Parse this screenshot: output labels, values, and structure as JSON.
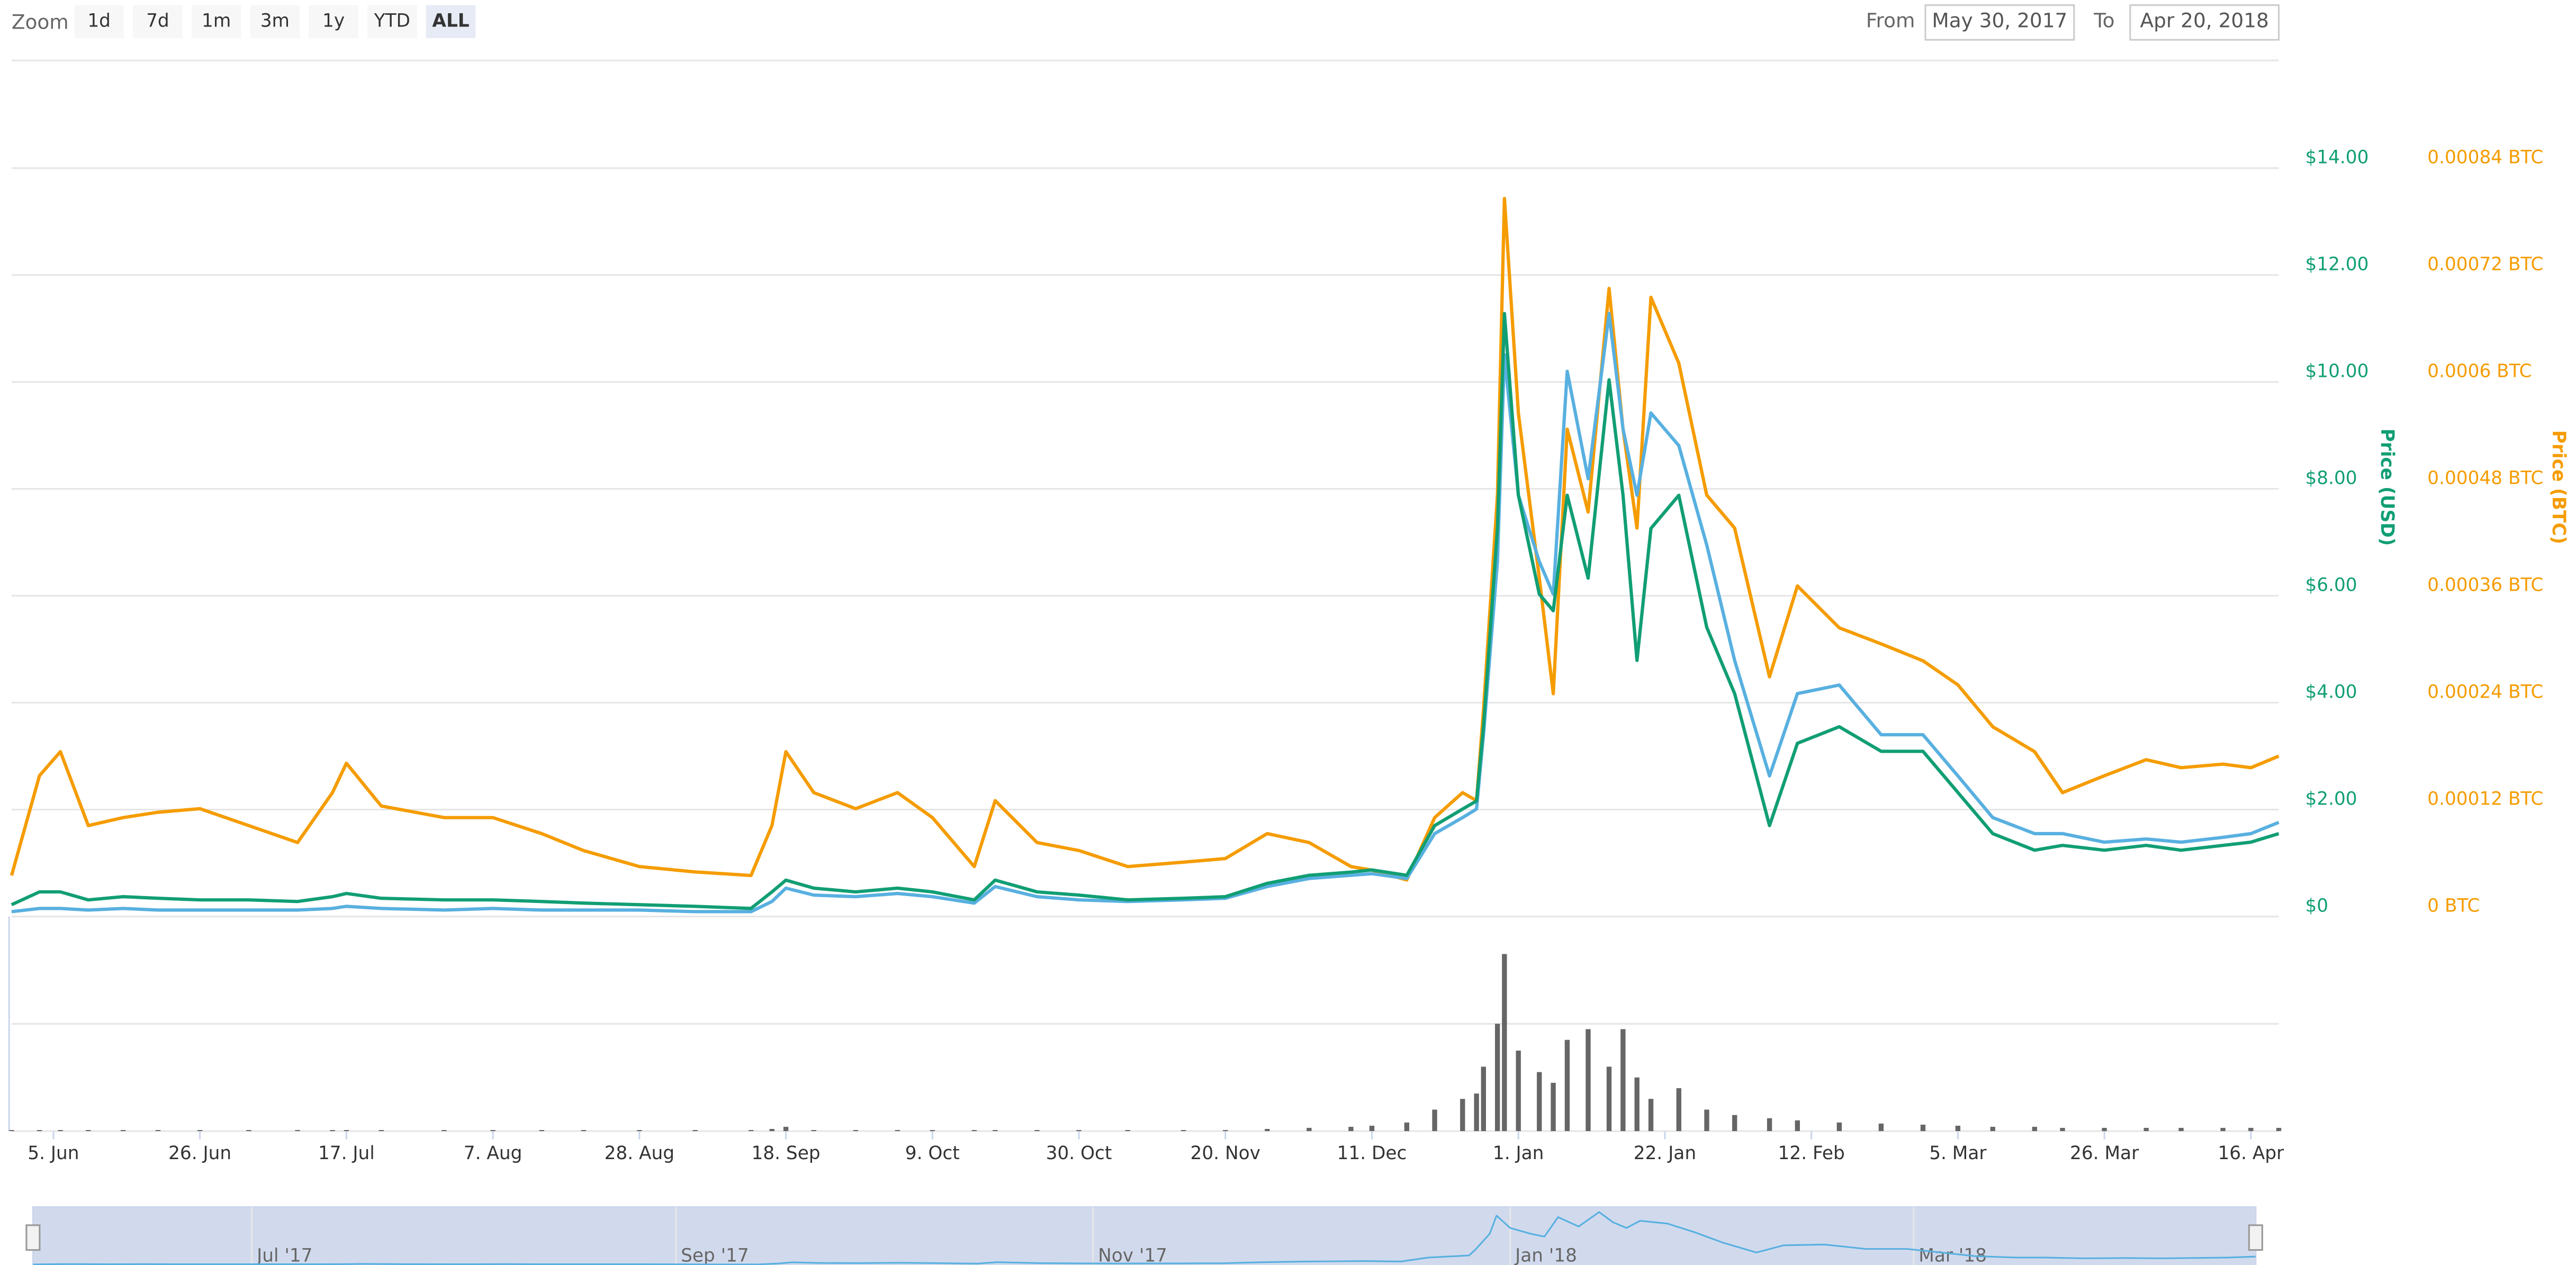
{
  "range_selector": {
    "label": "Zoom",
    "buttons": [
      "1d",
      "7d",
      "1m",
      "3m",
      "1y",
      "YTD",
      "ALL"
    ],
    "selected": 6
  },
  "date_range": {
    "from_label": "From",
    "from": "May 30, 2017",
    "to_label": "To",
    "to": "Apr 20, 2018"
  },
  "chart_data": {
    "type": "line",
    "y_label": "Price (USD)",
    "y2_label": "Price (BTC)",
    "x": [
      "2017-05-30",
      "2017-06-03",
      "2017-06-06",
      "2017-06-10",
      "2017-06-15",
      "2017-06-20",
      "2017-06-26",
      "2017-07-03",
      "2017-07-10",
      "2017-07-15",
      "2017-07-17",
      "2017-07-22",
      "2017-07-31",
      "2017-08-07",
      "2017-08-14",
      "2017-08-20",
      "2017-08-28",
      "2017-09-05",
      "2017-09-13",
      "2017-09-16",
      "2017-09-18",
      "2017-09-22",
      "2017-09-28",
      "2017-10-04",
      "2017-10-09",
      "2017-10-15",
      "2017-10-18",
      "2017-10-24",
      "2017-10-30",
      "2017-11-06",
      "2017-11-14",
      "2017-11-20",
      "2017-11-26",
      "2017-12-02",
      "2017-12-08",
      "2017-12-11",
      "2017-12-16",
      "2017-12-20",
      "2017-12-24",
      "2017-12-26",
      "2017-12-27",
      "2017-12-29",
      "2017-12-30",
      "2018-01-01",
      "2018-01-04",
      "2018-01-06",
      "2018-01-08",
      "2018-01-11",
      "2018-01-14",
      "2018-01-16",
      "2018-01-18",
      "2018-01-20",
      "2018-01-24",
      "2018-01-28",
      "2018-02-01",
      "2018-02-06",
      "2018-02-10",
      "2018-02-16",
      "2018-02-22",
      "2018-02-28",
      "2018-03-05",
      "2018-03-10",
      "2018-03-16",
      "2018-03-20",
      "2018-03-26",
      "2018-04-01",
      "2018-04-06",
      "2018-04-12",
      "2018-04-16",
      "2018-04-20"
    ],
    "series": [
      {
        "color": "#f59c00",
        "axis": "y2",
        "values": [
          4.6e-05,
          0.000158,
          0.000185,
          0.000102,
          0.000111,
          0.000117,
          0.000121,
          0.000102,
          8.3e-05,
          0.000139,
          0.000172,
          0.000124,
          0.000111,
          0.000111,
          9.3e-05,
          7.4e-05,
          5.6e-05,
          5e-05,
          4.6e-05,
          0.000102,
          0.000185,
          0.000139,
          0.000121,
          0.000139,
          0.000111,
          5.6e-05,
          0.00013,
          8.3e-05,
          7.4e-05,
          5.6e-05,
          6.1e-05,
          6.5e-05,
          9.3e-05,
          8.3e-05,
          5.6e-05,
          5.2e-05,
          4.1e-05,
          0.000111,
          0.000139,
          0.00013,
          0.000232,
          0.000473,
          0.000806,
          0.000565,
          0.00038,
          0.00025,
          0.000547,
          0.000454,
          0.000705,
          0.000547,
          0.000436,
          0.000695,
          0.000621,
          0.000473,
          0.000436,
          0.000269,
          0.000371,
          0.000324,
          0.000306,
          0.000287,
          0.00026,
          0.000213,
          0.000185,
          0.000139,
          0.000158,
          0.000176,
          0.000167,
          0.000171,
          0.000167,
          0.00018
        ]
      },
      {
        "color": "#58b0e0",
        "axis": "y",
        "values": [
          0.09,
          0.15,
          0.15,
          0.12,
          0.15,
          0.12,
          0.12,
          0.12,
          0.12,
          0.15,
          0.19,
          0.15,
          0.12,
          0.15,
          0.12,
          0.12,
          0.12,
          0.09,
          0.09,
          0.28,
          0.53,
          0.4,
          0.37,
          0.43,
          0.37,
          0.25,
          0.56,
          0.37,
          0.31,
          0.28,
          0.31,
          0.34,
          0.56,
          0.71,
          0.77,
          0.8,
          0.71,
          1.55,
          1.85,
          2.01,
          3.4,
          6.64,
          10.51,
          7.88,
          6.64,
          6.03,
          10.2,
          8.19,
          11.28,
          9.12,
          7.88,
          9.42,
          8.81,
          6.95,
          4.79,
          2.63,
          4.17,
          4.33,
          3.4,
          3.4,
          2.63,
          1.85,
          1.55,
          1.55,
          1.39,
          1.45,
          1.39,
          1.48,
          1.55,
          1.76
        ]
      },
      {
        "color": "#119e74",
        "axis": "y",
        "values": [
          0.22,
          0.46,
          0.46,
          0.31,
          0.37,
          0.34,
          0.31,
          0.31,
          0.28,
          0.37,
          0.43,
          0.34,
          0.31,
          0.31,
          0.28,
          0.25,
          0.22,
          0.19,
          0.15,
          0.46,
          0.68,
          0.53,
          0.46,
          0.53,
          0.46,
          0.31,
          0.68,
          0.46,
          0.4,
          0.31,
          0.34,
          0.37,
          0.62,
          0.77,
          0.83,
          0.87,
          0.77,
          1.7,
          2.01,
          2.16,
          3.55,
          7.26,
          11.28,
          7.88,
          6.03,
          5.72,
          7.88,
          6.33,
          10.04,
          7.88,
          4.79,
          7.26,
          7.88,
          5.41,
          4.17,
          1.7,
          3.24,
          3.55,
          3.09,
          3.09,
          2.32,
          1.55,
          1.24,
          1.33,
          1.24,
          1.33,
          1.24,
          1.33,
          1.39,
          1.55
        ]
      }
    ],
    "volume": {
      "color": "#666666",
      "ylim": [
        0,
        2
      ],
      "yticks": [
        0,
        1,
        2
      ],
      "values": [
        0.01,
        0.01,
        0.01,
        0.01,
        0.01,
        0.01,
        0.01,
        0.01,
        0.01,
        0.01,
        0.01,
        0.01,
        0.01,
        0.01,
        0.01,
        0.01,
        0.01,
        0.01,
        0.01,
        0.02,
        0.04,
        0.01,
        0.01,
        0.01,
        0.01,
        0.01,
        0.01,
        0.01,
        0.01,
        0.01,
        0.01,
        0.01,
        0.02,
        0.03,
        0.04,
        0.05,
        0.08,
        0.2,
        0.3,
        0.35,
        0.6,
        1.0,
        1.65,
        0.75,
        0.55,
        0.45,
        0.85,
        0.95,
        0.6,
        0.95,
        0.5,
        0.3,
        0.4,
        0.2,
        0.15,
        0.12,
        0.1,
        0.08,
        0.07,
        0.06,
        0.05,
        0.04,
        0.04,
        0.03,
        0.03,
        0.03,
        0.03,
        0.03,
        0.03,
        0.03
      ]
    },
    "xlim": [
      "2017-05-30",
      "2018-04-20"
    ],
    "xticks": [
      {
        "value": "2017-06-05",
        "label": "5. Jun"
      },
      {
        "value": "2017-06-26",
        "label": "26. Jun"
      },
      {
        "value": "2017-07-17",
        "label": "17. Jul"
      },
      {
        "value": "2017-08-07",
        "label": "7. Aug"
      },
      {
        "value": "2017-08-28",
        "label": "28. Aug"
      },
      {
        "value": "2017-09-18",
        "label": "18. Sep"
      },
      {
        "value": "2017-10-09",
        "label": "9. Oct"
      },
      {
        "value": "2017-10-30",
        "label": "30. Oct"
      },
      {
        "value": "2017-11-20",
        "label": "20. Nov"
      },
      {
        "value": "2017-12-11",
        "label": "11. Dec"
      },
      {
        "value": "2018-01-01",
        "label": "1. Jan"
      },
      {
        "value": "2018-01-22",
        "label": "22. Jan"
      },
      {
        "value": "2018-02-12",
        "label": "12. Feb"
      },
      {
        "value": "2018-03-05",
        "label": "5. Mar"
      },
      {
        "value": "2018-03-26",
        "label": "26. Mar"
      },
      {
        "value": "2018-04-16",
        "label": "16. Apr"
      }
    ],
    "ylim": [
      0,
      16
    ],
    "yticks": [
      {
        "value": 0,
        "label": "$0"
      },
      {
        "value": 2,
        "label": "$2.00"
      },
      {
        "value": 4,
        "label": "$4.00"
      },
      {
        "value": 6,
        "label": "$6.00"
      },
      {
        "value": 8,
        "label": "$8.00"
      },
      {
        "value": 10,
        "label": "$10.00"
      },
      {
        "value": 12,
        "label": "$12.00"
      },
      {
        "value": 14,
        "label": "$14.00"
      }
    ],
    "y2lim": [
      0,
      0.00096
    ],
    "y2ticks": [
      {
        "value": 0,
        "label": "0 BTC"
      },
      {
        "value": 0.00012,
        "label": "0.00012 BTC"
      },
      {
        "value": 0.00024,
        "label": "0.00024 BTC"
      },
      {
        "value": 0.00036,
        "label": "0.00036 BTC"
      },
      {
        "value": 0.00048,
        "label": "0.00048 BTC"
      },
      {
        "value": 0.0006,
        "label": "0.0006 BTC"
      },
      {
        "value": 0.00072,
        "label": "0.00072 BTC"
      },
      {
        "value": 0.00084,
        "label": "0.00084 BTC"
      }
    ],
    "grid": true,
    "navigator": {
      "series": 1,
      "ylim": [
        0,
        12
      ],
      "labels": [
        {
          "value": "2017-07-01",
          "label": "Jul '17"
        },
        {
          "value": "2017-09-01",
          "label": "Sep '17"
        },
        {
          "value": "2017-11-01",
          "label": "Nov '17"
        },
        {
          "value": "2018-01-01",
          "label": "Jan '18"
        },
        {
          "value": "2018-03-01",
          "label": "Mar '18"
        }
      ]
    }
  }
}
